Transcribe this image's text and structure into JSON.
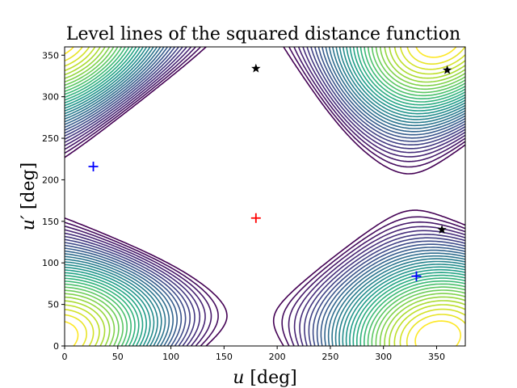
{
  "chart_data": {
    "type": "contour",
    "title": "Level lines of the squared distance function",
    "xlabel_var": "u",
    "xlabel_unit": " [deg]",
    "ylabel_var": "u′",
    "ylabel_unit": " [deg]",
    "xlim": [
      0,
      377
    ],
    "ylim": [
      0,
      360
    ],
    "xticks": [
      0,
      50,
      100,
      150,
      200,
      250,
      300,
      350
    ],
    "yticks": [
      0,
      50,
      100,
      150,
      200,
      250,
      300,
      350
    ],
    "colormap": "viridis",
    "grid": false,
    "legend": "none",
    "markers": [
      {
        "kind": "plus",
        "color": "#ff0000",
        "x": 180,
        "y": 154
      },
      {
        "kind": "plus",
        "color": "#0000ff",
        "x": 27,
        "y": 216
      },
      {
        "kind": "plus",
        "color": "#0000ff",
        "x": 331,
        "y": 84
      },
      {
        "kind": "star",
        "color": "#000000",
        "x": 180,
        "y": 334
      },
      {
        "kind": "star",
        "color": "#000000",
        "x": 360,
        "y": 332
      },
      {
        "kind": "star",
        "color": "#000000",
        "x": 355,
        "y": 140
      }
    ]
  }
}
